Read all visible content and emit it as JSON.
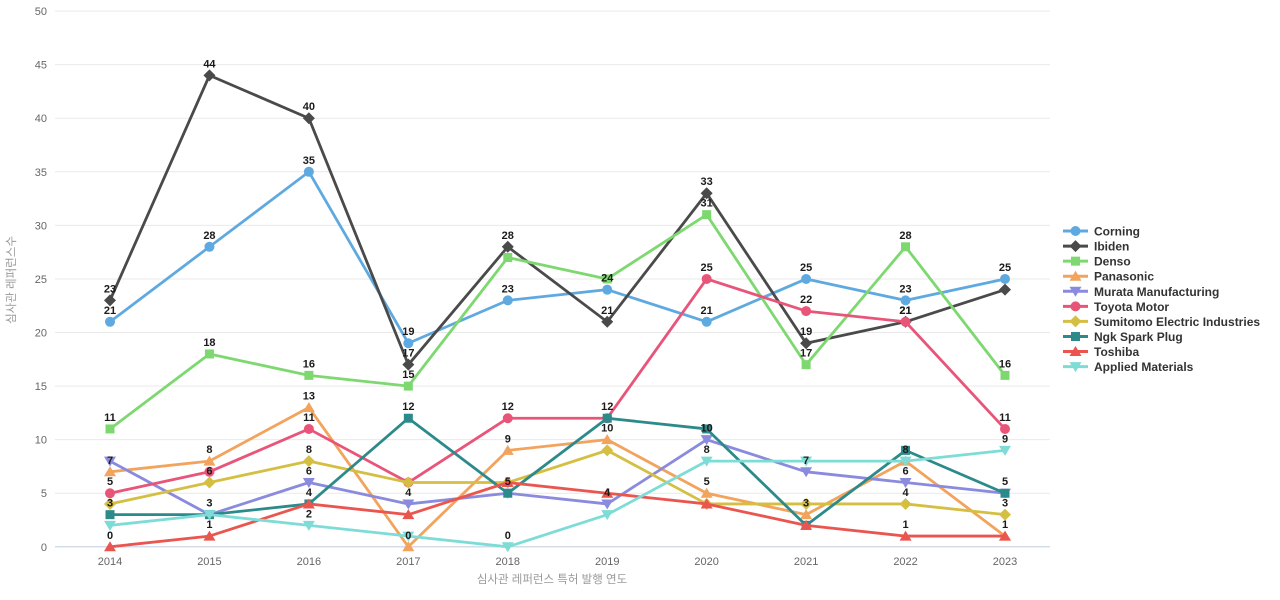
{
  "chart_data": {
    "type": "line",
    "title": "",
    "xlabel": "심사관 레퍼런스 특허 발행 연도",
    "ylabel": "심사관 레퍼런스수",
    "categories": [
      "2014",
      "2015",
      "2016",
      "2017",
      "2018",
      "2019",
      "2020",
      "2021",
      "2022",
      "2023"
    ],
    "ylim": [
      0,
      50
    ],
    "ytick_step": 5,
    "grid": true,
    "legend_position": "right",
    "series": [
      {
        "name": "Corning",
        "color": "#5fa9e1",
        "marker": "circle",
        "values": [
          21,
          28,
          35,
          19,
          23,
          24,
          21,
          25,
          23,
          25
        ],
        "labels_visible": [
          1,
          1,
          1,
          1,
          1,
          1,
          1,
          1,
          1,
          1
        ]
      },
      {
        "name": "Ibiden",
        "color": "#4a4a4a",
        "marker": "diamond",
        "values": [
          23,
          44,
          40,
          17,
          28,
          21,
          33,
          19,
          21,
          24
        ],
        "labels_visible": [
          1,
          1,
          1,
          1,
          1,
          1,
          1,
          1,
          1,
          0
        ]
      },
      {
        "name": "Denso",
        "color": "#7ed870",
        "marker": "square",
        "values": [
          11,
          18,
          16,
          15,
          27,
          25,
          31,
          17,
          28,
          16
        ],
        "labels_visible": [
          1,
          1,
          1,
          1,
          0,
          0,
          1,
          1,
          1,
          1
        ]
      },
      {
        "name": "Panasonic",
        "color": "#f2a35c",
        "marker": "triangle-up",
        "values": [
          7,
          8,
          13,
          0,
          9,
          10,
          5,
          3,
          8,
          1
        ],
        "labels_visible": [
          1,
          1,
          1,
          1,
          1,
          1,
          1,
          1,
          1,
          0
        ]
      },
      {
        "name": "Murata Manufacturing",
        "color": "#8a8ade",
        "marker": "triangle-down",
        "values": [
          8,
          3,
          6,
          4,
          5,
          4,
          10,
          7,
          6,
          5
        ],
        "labels_visible": [
          0,
          1,
          1,
          1,
          0,
          1,
          1,
          1,
          1,
          0
        ]
      },
      {
        "name": "Toyota Motor",
        "color": "#e95479",
        "marker": "circle",
        "values": [
          5,
          7,
          11,
          6,
          12,
          12,
          25,
          22,
          21,
          11
        ],
        "labels_visible": [
          1,
          0,
          1,
          0,
          1,
          0,
          1,
          1,
          1,
          1
        ]
      },
      {
        "name": "Sumitomo Electric Industries",
        "color": "#d5bf43",
        "marker": "diamond",
        "values": [
          4,
          6,
          8,
          6,
          6,
          9,
          4,
          4,
          4,
          3
        ],
        "labels_visible": [
          0,
          1,
          1,
          0,
          0,
          0,
          0,
          0,
          1,
          1
        ]
      },
      {
        "name": "Ngk Spark Plug",
        "color": "#2d8a8a",
        "marker": "square",
        "values": [
          3,
          3,
          4,
          12,
          5,
          12,
          11,
          2,
          9,
          5
        ],
        "labels_visible": [
          1,
          0,
          0,
          1,
          1,
          1,
          0,
          0,
          0,
          1
        ]
      },
      {
        "name": "Toshiba",
        "color": "#ea564f",
        "marker": "triangle-up",
        "values": [
          0,
          1,
          4,
          3,
          6,
          5,
          4,
          2,
          1,
          1
        ],
        "labels_visible": [
          1,
          1,
          1,
          0,
          0,
          0,
          0,
          0,
          1,
          1
        ]
      },
      {
        "name": "Applied Materials",
        "color": "#7edcd6",
        "marker": "triangle-down",
        "values": [
          2,
          3,
          2,
          1,
          0,
          3,
          8,
          8,
          8,
          9
        ],
        "labels_visible": [
          0,
          0,
          1,
          0,
          1,
          0,
          1,
          0,
          0,
          1
        ]
      }
    ]
  },
  "style": {
    "background_color": "#ffffff",
    "grid_color": "#e9e9e9",
    "zero_line_color": "#d3dcec",
    "tick_label_color": "#666666",
    "axis_title_color": "#999999",
    "data_label_color": "#1a1a1a",
    "legend_text_color": "#333333"
  }
}
